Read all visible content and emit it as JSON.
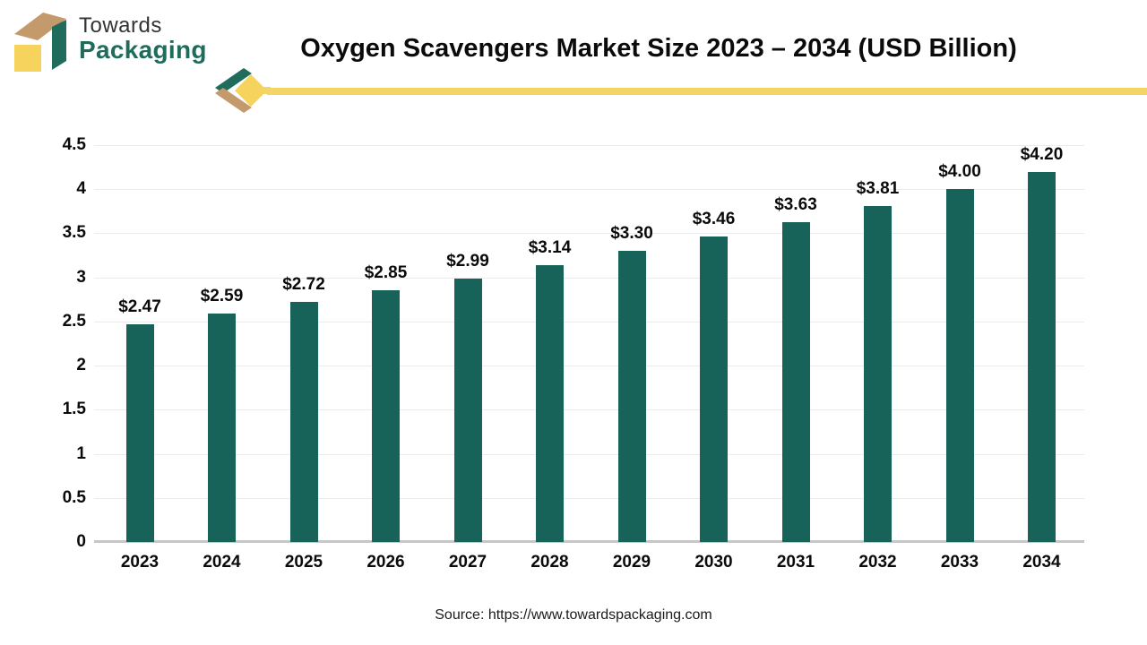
{
  "branding": {
    "logo_line1": "Towards",
    "logo_line2": "Packaging"
  },
  "colors": {
    "bar": "#17635a",
    "logo_green": "#1f6b5c",
    "logo_tan": "#c49a6c",
    "logo_yellow": "#f6d35c",
    "accent_line_yellow": "#f4d465",
    "gridline": "#ebebeb",
    "baseline": "#c6c6c6"
  },
  "chart_data": {
    "type": "bar",
    "title": "Oxygen Scavengers Market Size 2023 – 2034 (USD Billion)",
    "categories": [
      "2023",
      "2024",
      "2025",
      "2026",
      "2027",
      "2028",
      "2029",
      "2030",
      "2031",
      "2032",
      "2033",
      "2034"
    ],
    "values": [
      2.47,
      2.59,
      2.72,
      2.85,
      2.99,
      3.14,
      3.3,
      3.46,
      3.63,
      3.81,
      4.0,
      4.2
    ],
    "value_labels": [
      "$2.47",
      "$2.59",
      "$2.72",
      "$2.85",
      "$2.99",
      "$3.14",
      "$3.30",
      "$3.46",
      "$3.63",
      "$3.81",
      "$4.00",
      "$4.20"
    ],
    "xlabel": "",
    "ylabel": "",
    "ylim": [
      0,
      4.5
    ],
    "y_ticks": [
      "0",
      "0.5",
      "1",
      "1.5",
      "2",
      "2.5",
      "3",
      "3.5",
      "4",
      "4.5"
    ],
    "grid": true,
    "legend": "none",
    "bar_color": "#17635a"
  },
  "footer": {
    "source": "Source: https://www.towardspackaging.com"
  }
}
